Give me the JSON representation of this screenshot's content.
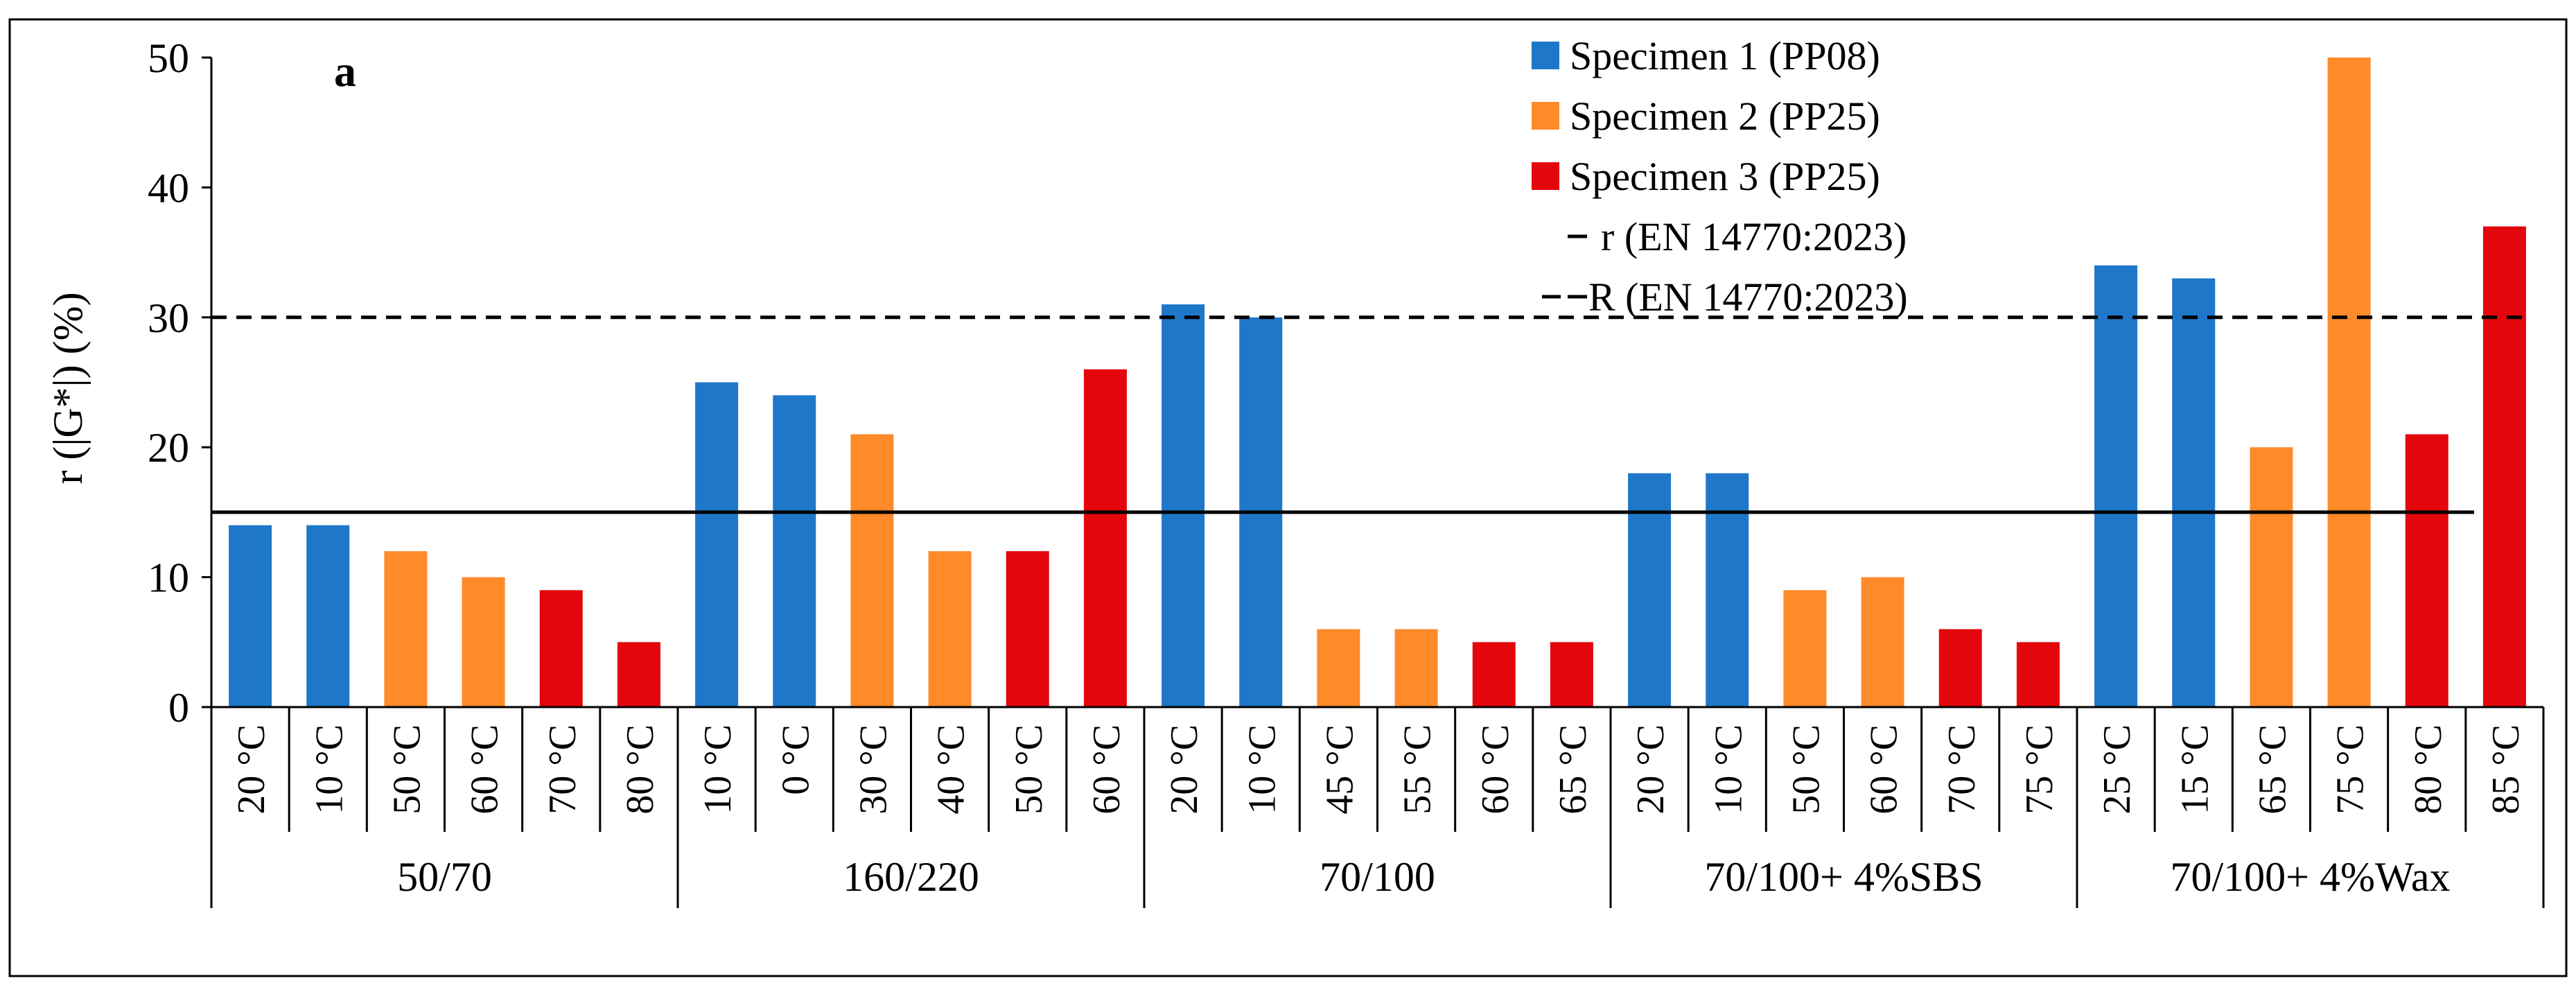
{
  "chart_data": {
    "type": "bar",
    "panel_label": "a",
    "ylabel": "r (|G*|) (%)",
    "ylim": [
      0,
      50
    ],
    "yticks": [
      0,
      10,
      20,
      30,
      40,
      50
    ],
    "groups": [
      {
        "name": "50/70",
        "temperatures": [
          "20 °C",
          "10 °C",
          "50 °C",
          "60 °C",
          "70 °C",
          "80 °C"
        ],
        "values": [
          14,
          14,
          12,
          10,
          9,
          5
        ],
        "specimens": [
          1,
          1,
          2,
          2,
          3,
          3
        ]
      },
      {
        "name": "160/220",
        "temperatures": [
          "10 °C",
          "0 °C",
          "30 °C",
          "40 °C",
          "50 °C",
          "60 °C"
        ],
        "values": [
          25,
          24,
          21,
          12,
          12,
          26
        ],
        "specimens": [
          1,
          1,
          2,
          2,
          3,
          3
        ]
      },
      {
        "name": "70/100",
        "temperatures": [
          "20 °C",
          "10 °C",
          "45 °C",
          "55 °C",
          "60 °C",
          "65 °C"
        ],
        "values": [
          31,
          30,
          6,
          6,
          5,
          5
        ],
        "specimens": [
          1,
          1,
          2,
          2,
          3,
          3
        ]
      },
      {
        "name": "70/100+ 4%SBS",
        "temperatures": [
          "20 °C",
          "10 °C",
          "50 °C",
          "60 °C",
          "70 °C",
          "75 °C"
        ],
        "values": [
          18,
          18,
          9,
          10,
          6,
          5
        ],
        "specimens": [
          1,
          1,
          2,
          2,
          3,
          3
        ]
      },
      {
        "name": "70/100+ 4%Wax",
        "temperatures": [
          "25 °C",
          "15 °C",
          "65 °C",
          "75 °C",
          "80 °C",
          "85 °C"
        ],
        "values": [
          34,
          33,
          20,
          50,
          21,
          37
        ],
        "specimens": [
          1,
          1,
          2,
          2,
          3,
          3
        ]
      }
    ],
    "series": [
      {
        "name": "Specimen 1 (PP08)",
        "color": "#1F77C9"
      },
      {
        "name": "Specimen 2 (PP25)",
        "color": "#FF8A2A"
      },
      {
        "name": "Specimen 3 (PP25)",
        "color": "#E3070D"
      }
    ],
    "reference_lines": [
      {
        "name": "r (EN 14770:2023)",
        "value": 15,
        "style": "solid"
      },
      {
        "name": "R (EN 14770:2023)",
        "value": 30,
        "style": "dashed"
      }
    ],
    "legend_position": "top-right"
  }
}
